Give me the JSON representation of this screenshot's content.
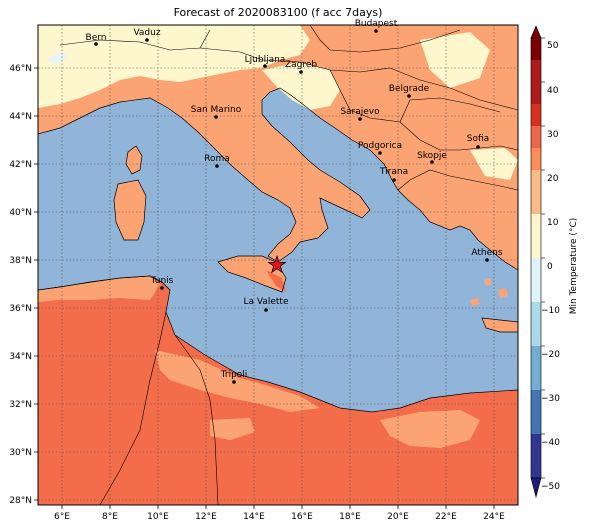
{
  "title": "Forecast of 2020083100 (f acc 7days)",
  "colorbar": {
    "label": "Min Temperature (°C)",
    "ticks": [
      "50",
      "40",
      "30",
      "20",
      "10",
      "0",
      "−10",
      "−20",
      "−30",
      "−40",
      "−50"
    ],
    "colors": [
      "#7f0000",
      "#b01a1a",
      "#d7301f",
      "#ef6548",
      "#fc8d59",
      "#fdbb84",
      "#fff5cc",
      "#e0f3f8",
      "#abd9e9",
      "#74add1",
      "#4575b4",
      "#313695",
      "#1a1a7a"
    ]
  },
  "axes": {
    "lat_labels": [
      "46°N",
      "44°N",
      "42°N",
      "40°N",
      "38°N",
      "36°N",
      "34°N",
      "32°N",
      "30°N",
      "28°N"
    ],
    "lon_labels": [
      "6°E",
      "8°E",
      "10°E",
      "12°E",
      "14°E",
      "16°E",
      "18°E",
      "20°E",
      "22°E",
      "24°E"
    ]
  },
  "cities": [
    {
      "name": "Bern"
    },
    {
      "name": "Vaduz"
    },
    {
      "name": "Budapest"
    },
    {
      "name": "Ljubljana"
    },
    {
      "name": "Zagreb"
    },
    {
      "name": "Belgrade"
    },
    {
      "name": "San Marino"
    },
    {
      "name": "Sarajevo"
    },
    {
      "name": "Sofia"
    },
    {
      "name": "Roma"
    },
    {
      "name": "Podgorica"
    },
    {
      "name": "Skopje"
    },
    {
      "name": "Tirana"
    },
    {
      "name": "Athens"
    },
    {
      "name": "Tunis"
    },
    {
      "name": "La Valette"
    },
    {
      "name": "Tripoli"
    }
  ],
  "marker": {
    "type": "red-star"
  },
  "colors": {
    "sea": "#91b4d9",
    "warm_land": "#fca373",
    "hot_land": "#f46d4b",
    "cool_land": "#fef6cd"
  }
}
